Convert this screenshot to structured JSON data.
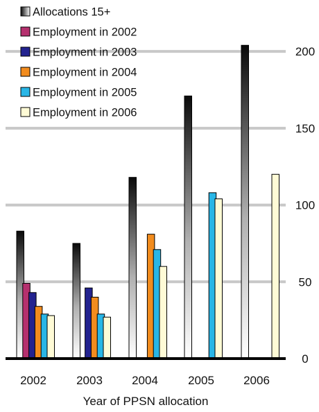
{
  "chart_data": {
    "type": "bar",
    "categories": [
      "2002",
      "2003",
      "2004",
      "2005",
      "2006"
    ],
    "series": [
      {
        "name": "Allocations 15+",
        "values": [
          83,
          75,
          118,
          171,
          204
        ],
        "color": "#1a1a1a"
      },
      {
        "name": "Employment in 2002",
        "values": [
          49,
          null,
          null,
          null,
          null
        ],
        "color": "#b5306e"
      },
      {
        "name": "Employment in 2003",
        "values": [
          43,
          46,
          null,
          null,
          null
        ],
        "color": "#23238f"
      },
      {
        "name": "Employment in 2004",
        "values": [
          34,
          40,
          81,
          null,
          null
        ],
        "color": "#f28c1e"
      },
      {
        "name": "Employment in 2005",
        "values": [
          29,
          29,
          71,
          108,
          null
        ],
        "color": "#29b6e6"
      },
      {
        "name": "Employment in 2006",
        "values": [
          28,
          27,
          60,
          104,
          120
        ],
        "color": "#fffbd6"
      }
    ],
    "xlabel": "Year of PPSN allocation",
    "ylabel": "",
    "ylim": [
      0,
      210
    ],
    "yticks": [
      "0",
      "50",
      "100",
      "150",
      "200"
    ],
    "y_axis_side": "right",
    "grid": true,
    "legend_position": "top-left"
  }
}
